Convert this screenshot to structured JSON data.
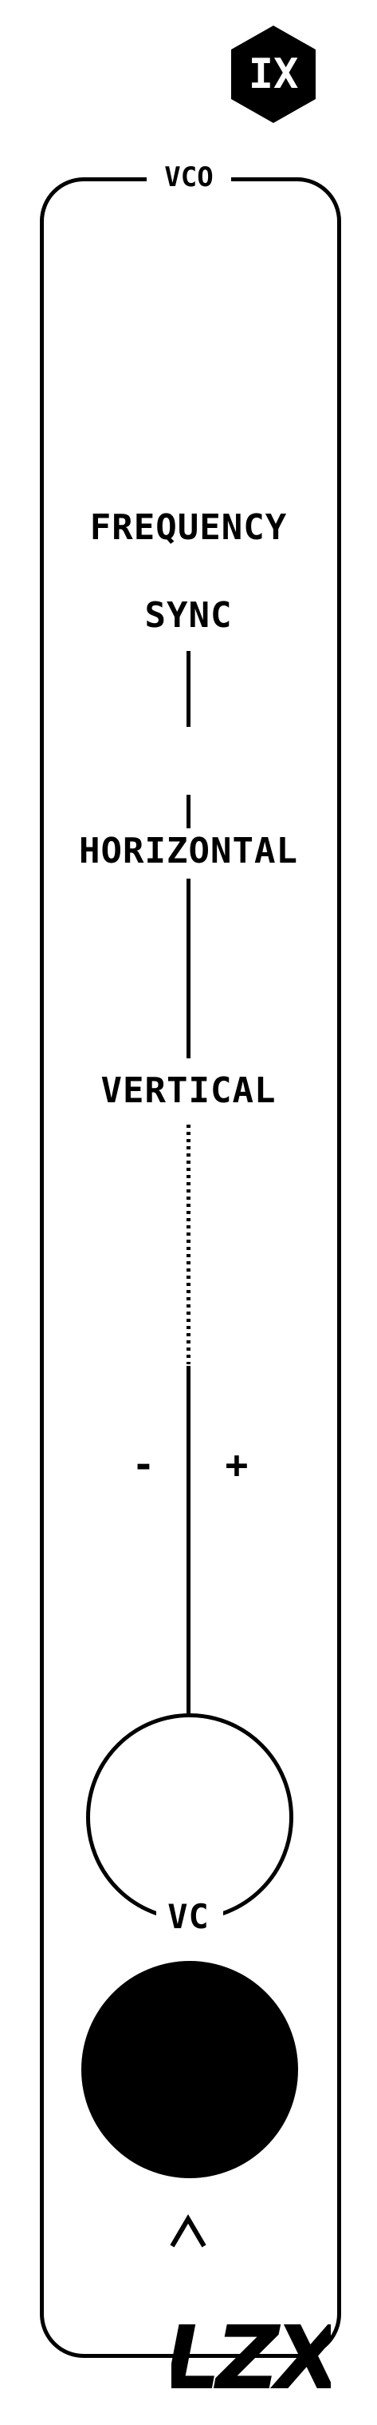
{
  "module": {
    "brand_badge": "IX",
    "title": "VCO",
    "labels": {
      "frequency": "FREQUENCY",
      "sync": "SYNC",
      "horizontal": "HORIZONTAL",
      "vertical": "VERTICAL",
      "minus": "-",
      "plus": "+",
      "vc": "VC"
    },
    "footer_logo": "LZX",
    "icons": [
      "hexagon-badge-icon",
      "up-caret-icon",
      "lzx-logo-icon"
    ]
  },
  "colors": {
    "ink": "#000000",
    "panel": "#ffffff"
  }
}
